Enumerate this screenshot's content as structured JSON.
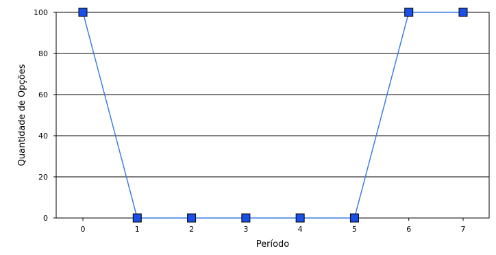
{
  "chart_data": {
    "type": "line",
    "xlabel": "Período",
    "ylabel": "Quantidade de Opções",
    "x": [
      0,
      1,
      2,
      3,
      4,
      5,
      6,
      7
    ],
    "series": [
      {
        "values": [
          100,
          0,
          0,
          0,
          0,
          0,
          100,
          100
        ]
      }
    ],
    "ylim": [
      0,
      100
    ],
    "y_ticks": [
      0,
      20,
      40,
      60,
      80,
      100
    ],
    "x_ticks": [
      0,
      1,
      2,
      3,
      4,
      5,
      6,
      7
    ],
    "grid": "horizontal",
    "colors": {
      "line": "#3a7fe0",
      "marker_fill": "#1a4fe8",
      "marker_stroke": "#000000",
      "grid": "#000000"
    }
  }
}
